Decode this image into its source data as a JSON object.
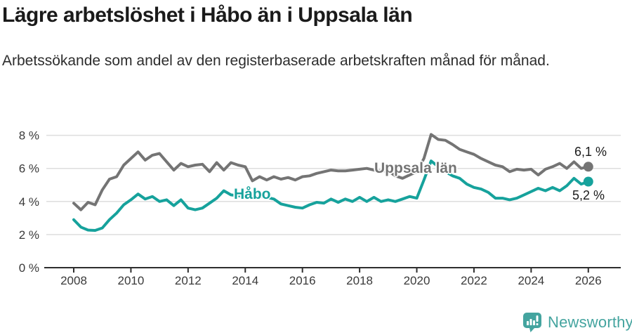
{
  "header": {
    "title": "Lägre arbetslöshet i Håbo än i Uppsala län",
    "subtitle": "Arbetssökande som andel av den registerbaserade arbetskraften månad för månad."
  },
  "chart_data": {
    "type": "line",
    "x_start_year": 2008,
    "x_step_years": 0.25,
    "x_ticks": [
      2008,
      2010,
      2012,
      2014,
      2016,
      2018,
      2020,
      2022,
      2024,
      2026
    ],
    "y_tick_labels": [
      "0 %",
      "2 %",
      "4 %",
      "6 %",
      "8 %"
    ],
    "y_tick_values": [
      0,
      2,
      4,
      6,
      8
    ],
    "ylim": [
      0,
      8.6
    ],
    "grid": true,
    "unit": "%",
    "series": [
      {
        "name": "Uppsala län",
        "color": "#747474",
        "end_label": "6,1 %",
        "end_value": 6.1,
        "values": [
          3.9,
          3.5,
          3.95,
          3.8,
          4.7,
          5.35,
          5.5,
          6.2,
          6.6,
          7.0,
          6.5,
          6.8,
          6.9,
          6.4,
          5.9,
          6.3,
          6.1,
          6.2,
          6.25,
          5.8,
          6.35,
          5.9,
          6.35,
          6.2,
          6.1,
          5.25,
          5.5,
          5.3,
          5.5,
          5.35,
          5.45,
          5.3,
          5.5,
          5.55,
          5.7,
          5.8,
          5.9,
          5.85,
          5.85,
          5.9,
          5.95,
          6.0,
          5.9,
          5.85,
          5.85,
          5.55,
          5.4,
          5.6,
          5.8,
          6.6,
          8.05,
          7.75,
          7.7,
          7.45,
          7.15,
          7.0,
          6.85,
          6.6,
          6.4,
          6.2,
          6.1,
          5.8,
          5.95,
          5.9,
          5.95,
          5.6,
          5.95,
          6.1,
          6.3,
          6.0,
          6.4,
          6.0,
          6.1
        ]
      },
      {
        "name": "Håbo",
        "color": "#16a29c",
        "end_label": "5,2 %",
        "end_value": 5.2,
        "values": [
          2.9,
          2.45,
          2.27,
          2.25,
          2.4,
          2.9,
          3.3,
          3.8,
          4.1,
          4.45,
          4.15,
          4.3,
          4.0,
          4.1,
          3.75,
          4.1,
          3.6,
          3.5,
          3.6,
          3.9,
          4.2,
          4.65,
          4.4,
          4.35,
          4.3,
          4.2,
          4.3,
          4.25,
          4.15,
          3.85,
          3.75,
          3.65,
          3.6,
          3.8,
          3.95,
          3.9,
          4.15,
          3.95,
          4.15,
          4.0,
          4.25,
          4.0,
          4.25,
          4.0,
          4.1,
          4.0,
          4.15,
          4.3,
          4.2,
          5.3,
          6.45,
          6.1,
          5.8,
          5.55,
          5.4,
          5.05,
          4.85,
          4.75,
          4.55,
          4.2,
          4.2,
          4.1,
          4.2,
          4.4,
          4.6,
          4.8,
          4.65,
          4.85,
          4.65,
          4.95,
          5.4,
          5.05,
          5.2
        ]
      }
    ]
  },
  "footer": {
    "brand": "Newsworthy",
    "brand_color": "#44a49f"
  }
}
